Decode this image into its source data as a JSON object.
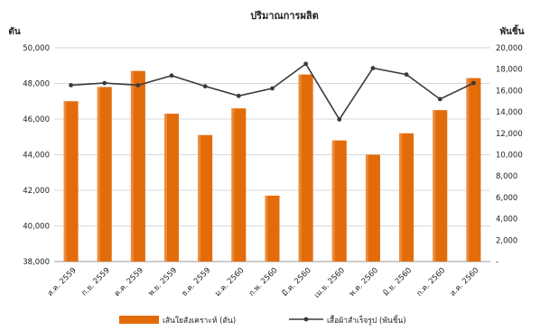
{
  "chart_data": {
    "type": "bar+line",
    "title": "ปริมาณการผลิต",
    "left_axis_label": "ตัน",
    "right_axis_label": "พันชิ้น",
    "categories": [
      "ส.ค. 2559",
      "ก.ย. 2559",
      "ต.ค. 2559",
      "พ.ย. 2559",
      "ธ.ค. 2559",
      "ม.ค. 2560",
      "ก.พ. 2560",
      "มี.ค. 2560",
      "เม.ย. 2560",
      "พ.ค. 2560",
      "มิ.ย. 2560",
      "ก.ค. 2560",
      "ส.ค. 2560"
    ],
    "left_ticks": [
      "38,000",
      "40,000",
      "42,000",
      "44,000",
      "46,000",
      "48,000",
      "50,000"
    ],
    "right_ticks": [
      "-",
      "2,000",
      "4,000",
      "6,000",
      "8,000",
      "10,000",
      "12,000",
      "14,000",
      "16,000",
      "18,000",
      "20,000"
    ],
    "left_ylim": [
      38000,
      50000
    ],
    "right_ylim": [
      0,
      20000
    ],
    "series": [
      {
        "name": "เส้นใยสังเคราะห์ (ตัน)",
        "type": "bar",
        "axis": "left",
        "color": "#E36C0A",
        "values": [
          47000,
          47800,
          48700,
          46300,
          45100,
          46600,
          41700,
          48500,
          44800,
          44000,
          45200,
          46500,
          48300
        ]
      },
      {
        "name": "เสื้อผ้าสำเร็จรูป (พันชิ้น)",
        "type": "line",
        "axis": "right",
        "color": "#3a3a3a",
        "values": [
          16500,
          16700,
          16500,
          17400,
          16400,
          15500,
          16200,
          18500,
          13300,
          18100,
          17500,
          15200,
          16700
        ]
      }
    ],
    "grid": true,
    "legend_position": "bottom"
  }
}
